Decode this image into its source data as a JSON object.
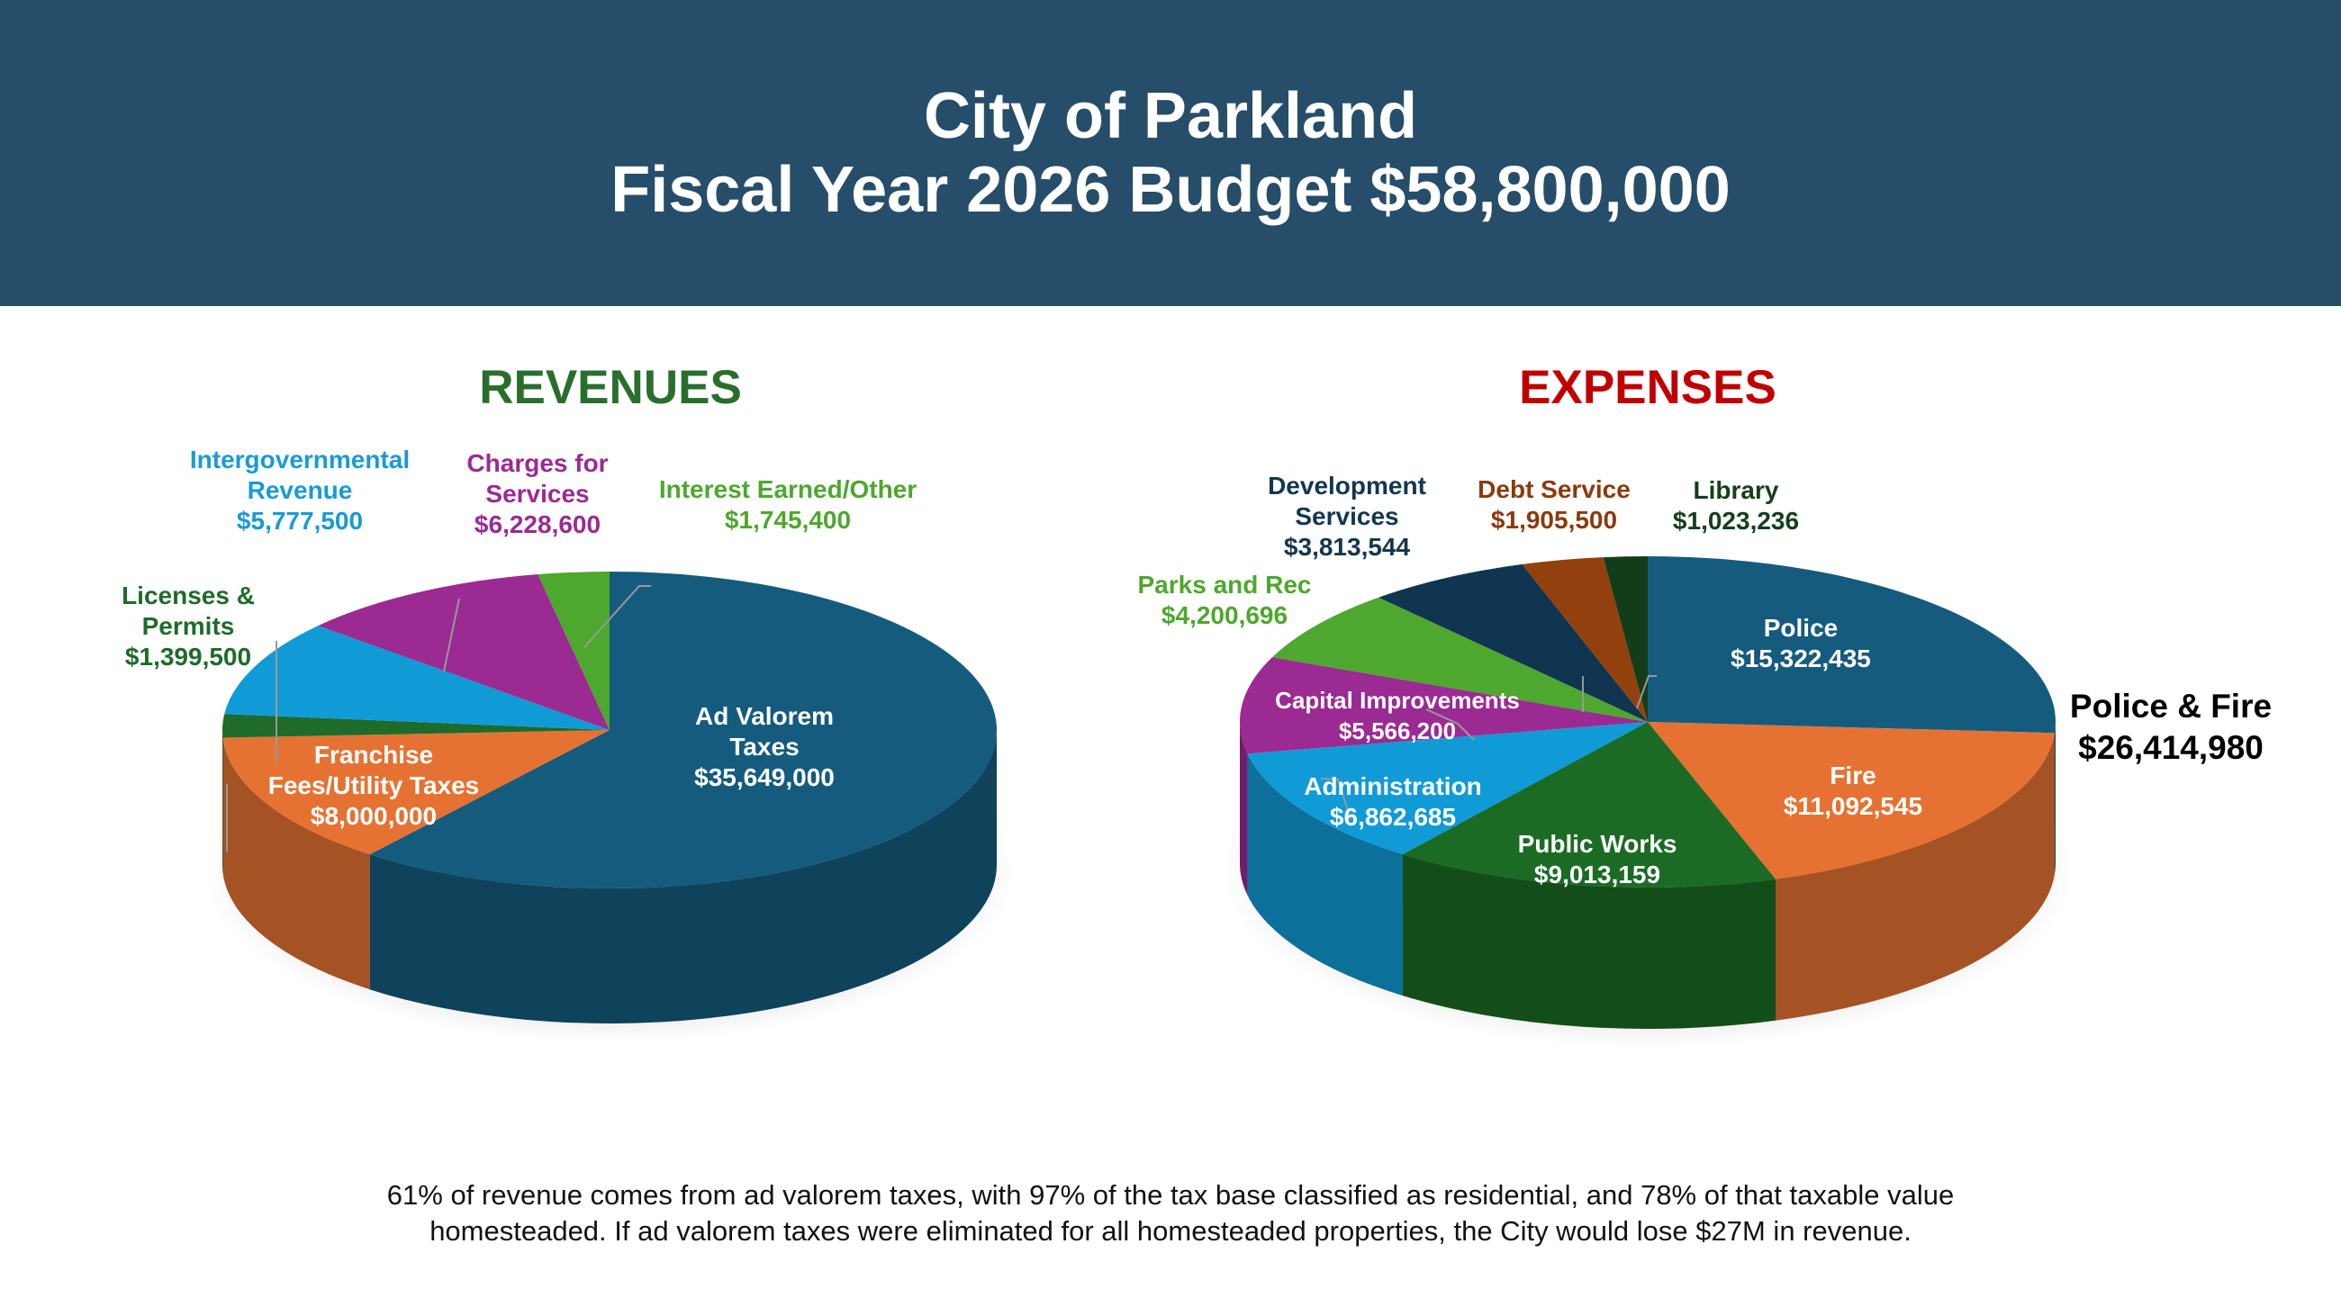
{
  "header": {
    "line1": "City of Parkland",
    "line2": "Fiscal Year 2026 Budget $58,800,000"
  },
  "chart_data": [
    {
      "type": "pie",
      "title": "REVENUES",
      "title_color": "#2a6e2e",
      "start": "top, clockwise",
      "slices": [
        {
          "name": "Ad Valorem Taxes",
          "lines": [
            "Ad Valorem",
            "Taxes"
          ],
          "value": 35649000,
          "label_value": "$35,649,000",
          "color": "#155b7e",
          "text_color": "#ffffff"
        },
        {
          "name": "Franchise Fees/Utility Taxes",
          "lines": [
            "Franchise",
            "Fees/Utility Taxes"
          ],
          "value": 8000000,
          "label_value": "$8,000,000",
          "color": "#e57232",
          "text_color": "#ffffff"
        },
        {
          "name": "Licenses & Permits",
          "lines": [
            "Licenses &",
            "Permits"
          ],
          "value": 1399500,
          "label_value": "$1,399,500",
          "color": "#1e6b2a",
          "text_color": "#1e6b2a"
        },
        {
          "name": "Intergovernmental Revenue",
          "lines": [
            "Intergovernmental",
            "Revenue"
          ],
          "value": 5777500,
          "label_value": "$5,777,500",
          "color": "#109bd6",
          "text_color": "#1a9ad6"
        },
        {
          "name": "Charges for Services",
          "lines": [
            "Charges for",
            "Services"
          ],
          "value": 6228600,
          "label_value": "$6,228,600",
          "color": "#9b2a93",
          "text_color": "#9b2a93"
        },
        {
          "name": "Interest Earned/Other",
          "lines": [
            "Interest Earned/Other"
          ],
          "value": 1745400,
          "label_value": "$1,745,400",
          "color": "#4ea72e",
          "text_color": "#4ea72e"
        }
      ]
    },
    {
      "type": "pie",
      "title": "EXPENSES",
      "title_color": "#c00000",
      "start": "top, clockwise",
      "slices": [
        {
          "name": "Police",
          "lines": [
            "Police"
          ],
          "value": 15322435,
          "label_value": "$15,322,435",
          "color": "#155b7e",
          "text_color": "#ffffff"
        },
        {
          "name": "Fire",
          "lines": [
            "Fire"
          ],
          "value": 11092545,
          "label_value": "$11,092,545",
          "color": "#e57232",
          "text_color": "#ffffff"
        },
        {
          "name": "Public Works",
          "lines": [
            "Public Works"
          ],
          "value": 9013159,
          "label_value": "$9,013,159",
          "color": "#1b6b24",
          "text_color": "#ffffff"
        },
        {
          "name": "Administration",
          "lines": [
            "Administration"
          ],
          "value": 6862685,
          "label_value": "$6,862,685",
          "color": "#109bd6",
          "text_color": "#ffffff"
        },
        {
          "name": "Capital Improvements",
          "lines": [
            "Capital Improvements"
          ],
          "value": 5566200,
          "label_value": "$5,566,200",
          "color": "#9b2a93",
          "text_color": "#ffffff"
        },
        {
          "name": "Parks and Rec",
          "lines": [
            "Parks and Rec"
          ],
          "value": 4200696,
          "label_value": "$4,200,696",
          "color": "#4ea72e",
          "text_color": "#4ea72e"
        },
        {
          "name": "Development Services",
          "lines": [
            "Development",
            "Services"
          ],
          "value": 3813544,
          "label_value": "$3,813,544",
          "color": "#0f3550",
          "text_color": "#12374f"
        },
        {
          "name": "Debt Service",
          "lines": [
            "Debt Service"
          ],
          "value": 1905500,
          "label_value": "$1,905,500",
          "color": "#93400f",
          "text_color": "#8b3a0e"
        },
        {
          "name": "Library",
          "lines": [
            "Library"
          ],
          "value": 1023236,
          "label_value": "$1,023,236",
          "color": "#123d18",
          "text_color": "#14401a"
        }
      ],
      "annotation": {
        "lines": [
          "Police & Fire",
          "$26,414,980"
        ]
      }
    }
  ],
  "footer": {
    "line1": "61% of revenue comes from ad valorem taxes, with 97% of the tax base classified as residential, and 78% of that taxable value",
    "line2": "homesteaded. If ad valorem taxes were eliminated for all homesteaded properties, the City would lose $27M in revenue."
  }
}
